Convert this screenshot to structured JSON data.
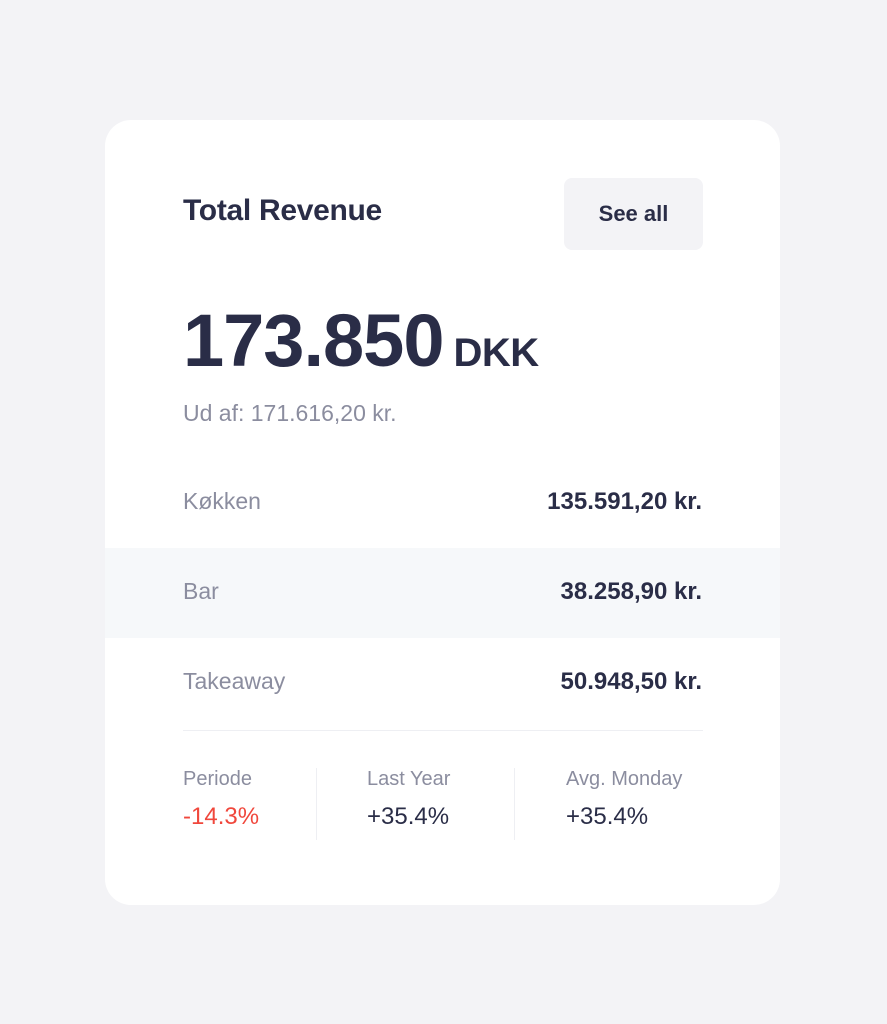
{
  "card": {
    "title": "Total Revenue",
    "see_all_label": "See all",
    "total_amount": "173.850",
    "total_currency": "DKK",
    "subtitle": "Ud af: 171.616,20 kr."
  },
  "rows": [
    {
      "label": "Køkken",
      "value": "135.591,20 kr."
    },
    {
      "label": "Bar",
      "value": "38.258,90 kr."
    },
    {
      "label": "Takeaway",
      "value": "50.948,50 kr."
    }
  ],
  "stats": [
    {
      "label": "Periode",
      "value": "-14.3%"
    },
    {
      "label": "Last Year",
      "value": "+35.4%"
    },
    {
      "label": "Avg. Monday",
      "value": "+35.4%"
    }
  ],
  "colors": {
    "background": "#f3f3f6",
    "card": "#ffffff",
    "text_primary": "#2a2d47",
    "text_secondary": "#8b8d9f",
    "negative": "#f0473c",
    "row_highlight": "#f6f8fa"
  }
}
